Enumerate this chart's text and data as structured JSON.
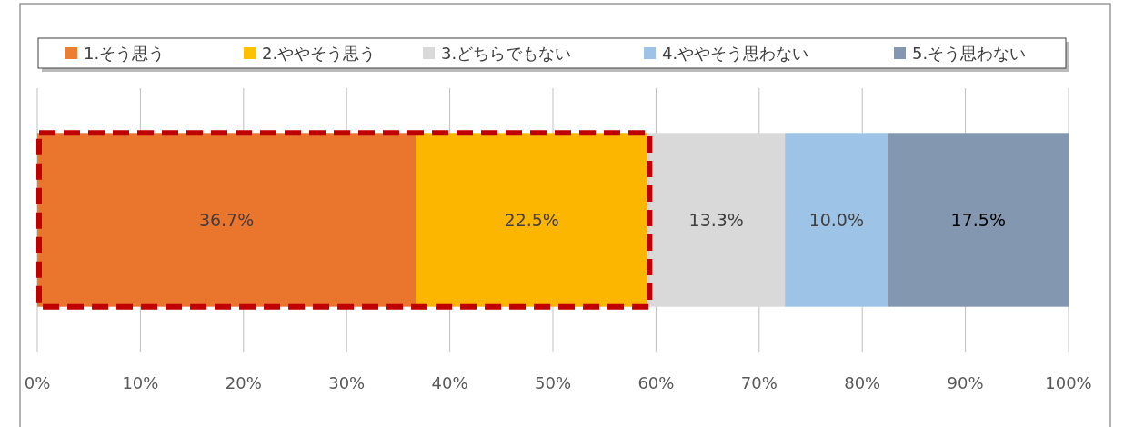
{
  "chart_data": {
    "type": "bar",
    "orientation": "horizontal",
    "stacked": true,
    "categories": [
      null
    ],
    "series": [
      {
        "name": "1.そう思う",
        "color": "#ed7d31",
        "values": [
          36.7
        ]
      },
      {
        "name": "2.ややそう思う",
        "color": "#ffc000",
        "values": [
          22.5
        ]
      },
      {
        "name": "3.どちらでもない",
        "color": "#d9d9d9",
        "values": [
          13.3
        ]
      },
      {
        "name": "4.ややそう思わない",
        "color": "#9dc3e6",
        "values": [
          10.0
        ]
      },
      {
        "name": "5.そう思わない",
        "color": "#8497b0",
        "values": [
          17.5
        ]
      }
    ],
    "value_labels": [
      [
        "36.7%"
      ],
      [
        "22.5%"
      ],
      [
        "13.3%"
      ],
      [
        "10.0%"
      ],
      [
        "17.5%"
      ]
    ],
    "xlim": [
      0,
      100
    ],
    "xticks": [
      {
        "value": 0,
        "label": "0%"
      },
      {
        "value": 10,
        "label": "10%"
      },
      {
        "value": 20,
        "label": "20%"
      },
      {
        "value": 30,
        "label": "30%"
      },
      {
        "value": 40,
        "label": "40%"
      },
      {
        "value": 50,
        "label": "50%"
      },
      {
        "value": 60,
        "label": "60%"
      },
      {
        "value": 70,
        "label": "70%"
      },
      {
        "value": 80,
        "label": "80%"
      },
      {
        "value": 90,
        "label": "90%"
      },
      {
        "value": 100,
        "label": "100%"
      }
    ],
    "grid": "x",
    "legend": "top",
    "bands": [
      {
        "axis": "x",
        "from": 0,
        "to": 59.2,
        "color": "#c00000"
      }
    ]
  }
}
